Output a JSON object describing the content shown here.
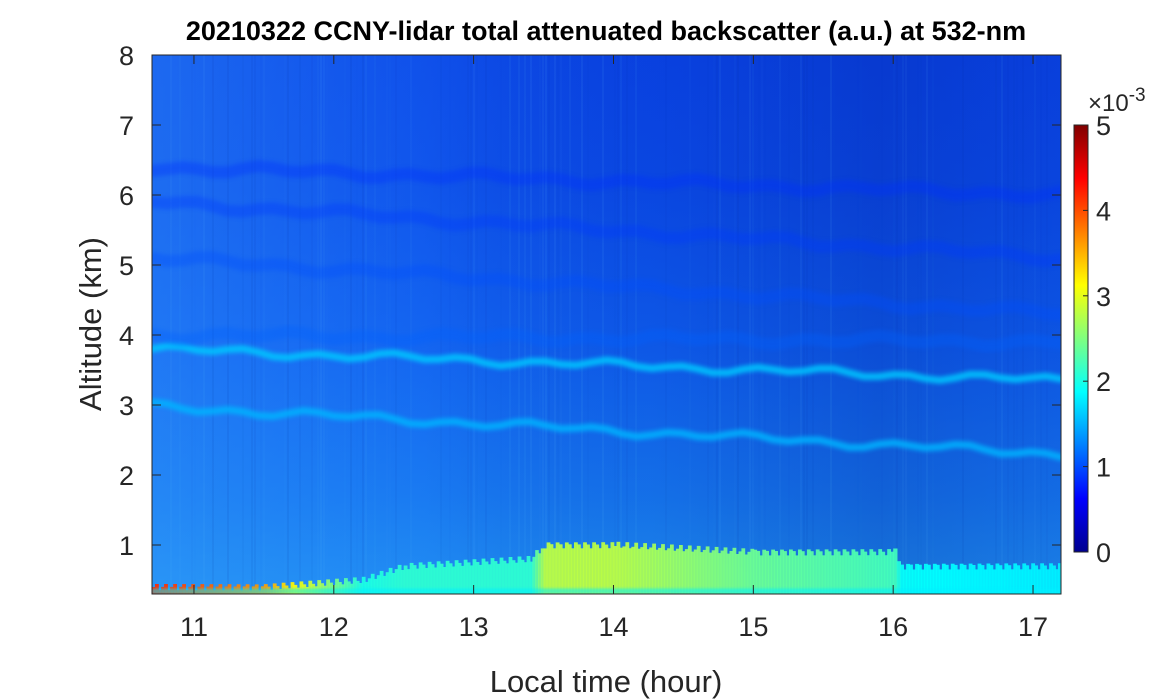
{
  "chart_data": {
    "type": "heatmap",
    "title": "20210322 CCNY-lidar total attenuated backscatter (a.u.) at 532-nm",
    "xlabel": "Local time (hour)",
    "ylabel": "Altitude (km)",
    "xlim": [
      10.7,
      17.2
    ],
    "ylim": [
      0.3,
      8
    ],
    "x_ticks": [
      "11",
      "12",
      "13",
      "14",
      "15",
      "16",
      "17"
    ],
    "y_ticks": [
      "1",
      "2",
      "3",
      "4",
      "5",
      "6",
      "7",
      "8"
    ],
    "colorbar": {
      "range": [
        0,
        5
      ],
      "ticks": [
        "0",
        "1",
        "2",
        "3",
        "4",
        "5"
      ],
      "multiplier": "×10",
      "exponent": "-3",
      "colormap": "jet"
    },
    "layers": [
      {
        "name": "aerosol layer",
        "altitude_start": 3.8,
        "altitude_end": 3.35,
        "value": 1.6
      },
      {
        "name": "aerosol layer",
        "altitude_start": 2.98,
        "altitude_end": 2.3,
        "value": 1.5
      },
      {
        "name": "aerosol layer",
        "altitude_start": 4.0,
        "altitude_end": 3.9,
        "value": 1.1
      },
      {
        "name": "aerosol layer",
        "altitude_start": 5.1,
        "altitude_end": 4.3,
        "value": 1.0
      },
      {
        "name": "aerosol layer",
        "altitude_start": 5.9,
        "altitude_end": 5.1,
        "value": 0.9
      },
      {
        "name": "aerosol layer",
        "altitude_start": 6.4,
        "altitude_end": 6.0,
        "value": 0.85
      }
    ],
    "boundary_layer": [
      {
        "time": 10.7,
        "top_km": 0.4,
        "value": 4.2
      },
      {
        "time": 11.5,
        "top_km": 0.4,
        "value": 3.6
      },
      {
        "time": 12.2,
        "top_km": 0.5,
        "value": 2.0
      },
      {
        "time": 12.5,
        "top_km": 0.7,
        "value": 2.1
      },
      {
        "time": 13.4,
        "top_km": 0.8,
        "value": 2.1
      },
      {
        "time": 13.5,
        "top_km": 1.0,
        "value": 2.8
      },
      {
        "time": 14.0,
        "top_km": 1.0,
        "value": 2.8
      },
      {
        "time": 15.0,
        "top_km": 0.9,
        "value": 2.4
      },
      {
        "time": 16.0,
        "top_km": 0.9,
        "value": 2.2
      },
      {
        "time": 16.05,
        "top_km": 0.7,
        "value": 1.9
      },
      {
        "time": 17.2,
        "top_km": 0.7,
        "value": 1.8
      }
    ]
  }
}
